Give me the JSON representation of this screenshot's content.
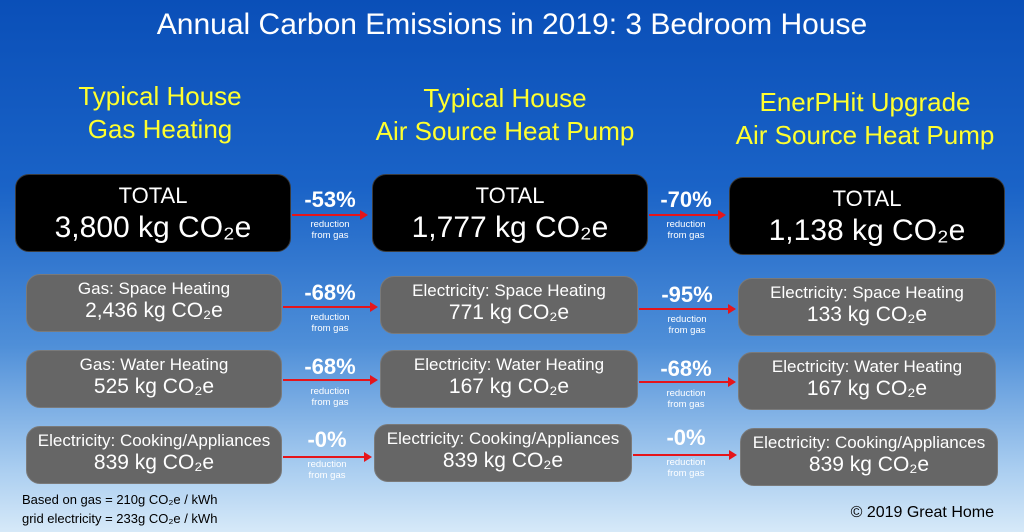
{
  "title": "Annual Carbon Emissions in 2019: 3 Bedroom House",
  "columns": [
    {
      "line1": "Typical House",
      "line2": "Gas Heating"
    },
    {
      "line1": "Typical House",
      "line2": "Air Source Heat Pump"
    },
    {
      "line1": "EnerPHit Upgrade",
      "line2": "Air Source Heat Pump"
    }
  ],
  "totals": [
    {
      "label": "TOTAL",
      "value": "3,800 kg CO₂e"
    },
    {
      "label": "TOTAL",
      "value": "1,777 kg CO₂e"
    },
    {
      "label": "TOTAL",
      "value": "1,138 kg CO₂e"
    }
  ],
  "rows": [
    {
      "cells": [
        {
          "label": "Gas: Space Heating",
          "value": "2,436 kg CO₂e"
        },
        {
          "label": "Electricity: Space Heating",
          "value": "771 kg CO₂e"
        },
        {
          "label": "Electricity: Space Heating",
          "value": "133 kg CO₂e"
        }
      ]
    },
    {
      "cells": [
        {
          "label": "Gas: Water Heating",
          "value": "525 kg CO₂e"
        },
        {
          "label": "Electricity: Water Heating",
          "value": "167 kg CO₂e"
        },
        {
          "label": "Electricity: Water Heating",
          "value": "167 kg CO₂e"
        }
      ]
    },
    {
      "cells": [
        {
          "label": "Electricity: Cooking/Appliances",
          "value": "839 kg CO₂e"
        },
        {
          "label": "Electricity: Cooking/Appliances",
          "value": "839 kg CO₂e"
        },
        {
          "label": "Electricity: Cooking/Appliances",
          "value": "839 kg CO₂e"
        }
      ]
    }
  ],
  "reductions": {
    "sub_line1": "reduction",
    "sub_line2": "from gas",
    "totals": [
      "-53%",
      "-70%"
    ],
    "rows": [
      [
        "-68%",
        "-95%"
      ],
      [
        "-68%",
        "-68%"
      ],
      [
        "-0%",
        "-0%"
      ]
    ]
  },
  "notes": {
    "line1": "Based on gas = 210g CO₂e / kWh",
    "line2": "grid electricity = 233g CO₂e / kWh"
  },
  "copyright": "© 2019 Great Home",
  "colors": {
    "heading": "#ffff2e",
    "arrow": "#e5151b",
    "total_box": "#000000",
    "item_box": "#666666"
  }
}
